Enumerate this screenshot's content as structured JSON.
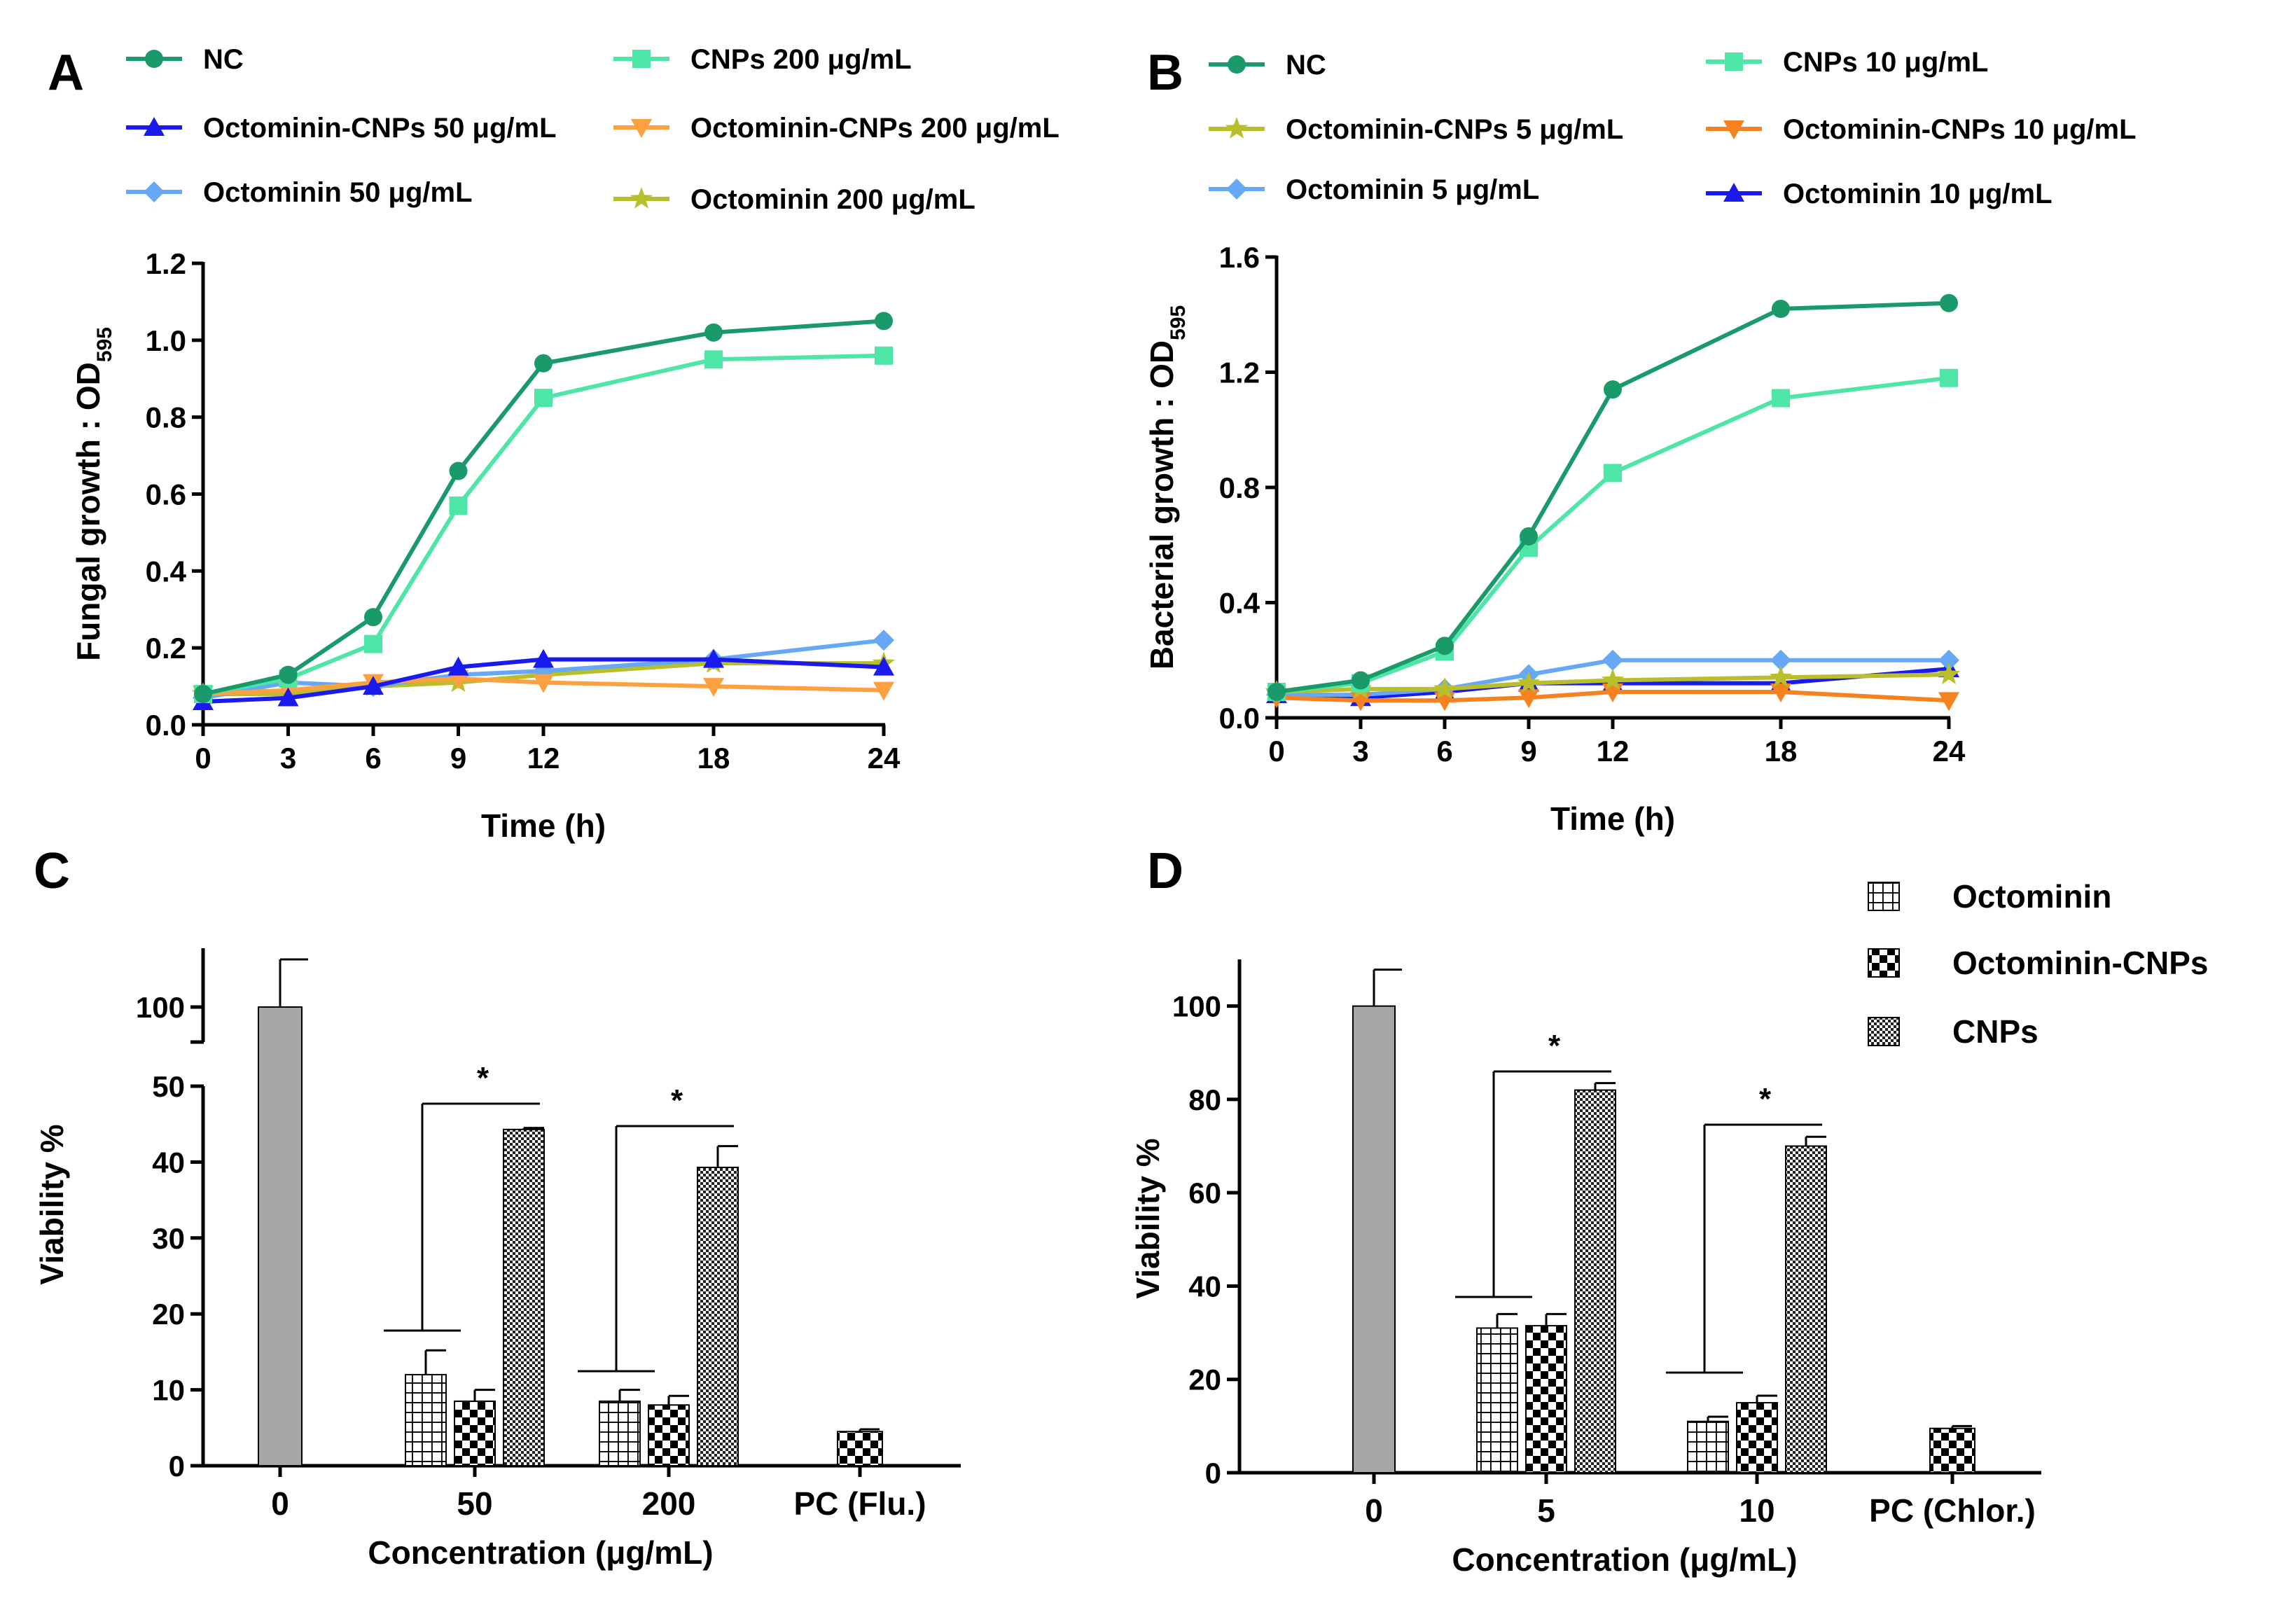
{
  "chart_data": [
    {
      "id": "A",
      "type": "line",
      "panel_label": "A",
      "xlabel": "Time (h)",
      "ylabel_main": "Fungal growth : OD",
      "ylabel_sub": "595",
      "x": [
        0,
        3,
        6,
        9,
        12,
        18,
        24
      ],
      "xticks": [
        "0",
        "3",
        "6",
        "9",
        "12",
        "18",
        "24"
      ],
      "ylim": [
        0,
        1.2
      ],
      "yticks": [
        "0.0",
        "0.2",
        "0.4",
        "0.6",
        "0.8",
        "1.0",
        "1.2"
      ],
      "ytick_values": [
        0,
        0.2,
        0.4,
        0.6,
        0.8,
        1.0,
        1.2
      ],
      "series": [
        {
          "name": "NC",
          "color": "#1a9a6a",
          "marker": "circle",
          "values": [
            0.08,
            0.13,
            0.28,
            0.66,
            0.94,
            1.02,
            1.05
          ]
        },
        {
          "name": "CNPs 200 μg/mL",
          "color": "#4de6a6",
          "marker": "square",
          "values": [
            0.08,
            0.12,
            0.21,
            0.57,
            0.85,
            0.95,
            0.96
          ]
        },
        {
          "name": "Octominin-CNPs 50 μg/mL",
          "color": "#1a1aee",
          "marker": "triangle-up",
          "values": [
            0.06,
            0.07,
            0.1,
            0.15,
            0.17,
            0.17,
            0.15
          ]
        },
        {
          "name": "Octominin-CNPs 200 μg/mL",
          "color": "#ffa040",
          "marker": "triangle-down",
          "values": [
            0.08,
            0.09,
            0.11,
            0.12,
            0.11,
            0.1,
            0.09
          ]
        },
        {
          "name": "Octominin 50 μg/mL",
          "color": "#66a8f5",
          "marker": "diamond",
          "values": [
            0.07,
            0.11,
            0.1,
            0.13,
            0.14,
            0.17,
            0.22
          ]
        },
        {
          "name": "Octominin 200 μg/mL",
          "color": "#b8bf2a",
          "marker": "star",
          "values": [
            0.08,
            0.08,
            0.1,
            0.11,
            0.13,
            0.16,
            0.16
          ]
        }
      ]
    },
    {
      "id": "B",
      "type": "line",
      "panel_label": "B",
      "xlabel": "Time (h)",
      "ylabel_main": "Bacterial growth : OD",
      "ylabel_sub": "595",
      "x": [
        0,
        3,
        6,
        9,
        12,
        18,
        24
      ],
      "xticks": [
        "0",
        "3",
        "6",
        "9",
        "12",
        "18",
        "24"
      ],
      "ylim": [
        0,
        1.6
      ],
      "yticks": [
        "0.0",
        "0.4",
        "0.8",
        "1.2",
        "1.6"
      ],
      "ytick_values": [
        0,
        0.4,
        0.8,
        1.2,
        1.6
      ],
      "series": [
        {
          "name": "NC",
          "color": "#1a9a6a",
          "marker": "circle",
          "values": [
            0.09,
            0.13,
            0.25,
            0.63,
            1.14,
            1.42,
            1.44
          ]
        },
        {
          "name": "CNPs 10 μg/mL",
          "color": "#4de6a6",
          "marker": "square",
          "values": [
            0.09,
            0.12,
            0.23,
            0.59,
            0.85,
            1.11,
            1.18
          ]
        },
        {
          "name": "Octominin-CNPs 5 μg/mL",
          "color": "#b8bf2a",
          "marker": "star",
          "values": [
            0.09,
            0.1,
            0.1,
            0.12,
            0.13,
            0.14,
            0.15
          ]
        },
        {
          "name": "Octominin-CNPs 10 μg/mL",
          "color": "#f5821f",
          "marker": "triangle-down",
          "values": [
            0.07,
            0.06,
            0.06,
            0.07,
            0.09,
            0.09,
            0.06
          ]
        },
        {
          "name": "Octominin 5 μg/mL",
          "color": "#66a8f5",
          "marker": "diamond",
          "values": [
            0.08,
            0.08,
            0.1,
            0.15,
            0.2,
            0.2,
            0.2
          ]
        },
        {
          "name": "Octominin 10 μg/mL",
          "color": "#1a1aee",
          "marker": "triangle-up",
          "values": [
            0.08,
            0.07,
            0.09,
            0.12,
            0.12,
            0.12,
            0.17
          ]
        }
      ]
    },
    {
      "id": "C",
      "type": "bar",
      "panel_label": "C",
      "xlabel": "Concentration (μg/mL)",
      "ylabel": "Viability %",
      "categories": [
        "0",
        "50",
        "200",
        "PC (Flu.)"
      ],
      "ylim_lower": [
        0,
        50
      ],
      "ylim_upper_tick": 100,
      "yticks": [
        "0",
        "10",
        "20",
        "30",
        "40",
        "50",
        "100"
      ],
      "ytick_values": [
        0,
        10,
        20,
        30,
        40,
        50,
        100
      ],
      "control": {
        "category": "0",
        "value": 100,
        "error": 12
      },
      "positive_control": {
        "category": "PC (Flu.)",
        "value": 4.5,
        "error": 0.3
      },
      "series": [
        {
          "name": "Octominin",
          "pattern": "grid",
          "values": [
            null,
            12,
            8.5,
            null
          ],
          "errors": [
            null,
            3.2,
            1.5,
            null
          ]
        },
        {
          "name": "Octominin-CNPs",
          "pattern": "checker",
          "values": [
            null,
            8.5,
            8,
            null
          ],
          "errors": [
            null,
            1.5,
            1.2,
            null
          ]
        },
        {
          "name": "CNPs",
          "pattern": "fine-checker",
          "values": [
            null,
            44.3,
            39.3,
            null
          ],
          "errors": [
            null,
            0.2,
            2.8,
            null
          ]
        }
      ],
      "significance": [
        {
          "category": "50",
          "label": "*"
        },
        {
          "category": "200",
          "label": "*"
        }
      ]
    },
    {
      "id": "D",
      "type": "bar",
      "panel_label": "D",
      "xlabel": "Concentration (μg/mL)",
      "ylabel": "Viability %",
      "categories": [
        "0",
        "5",
        "10",
        "PC (Chlor.)"
      ],
      "ylim": [
        0,
        110
      ],
      "yticks": [
        "0",
        "20",
        "40",
        "60",
        "80",
        "100"
      ],
      "ytick_values": [
        0,
        20,
        40,
        60,
        80,
        100
      ],
      "control": {
        "category": "0",
        "value": 100,
        "error": 8
      },
      "positive_control": {
        "category": "PC (Chlor.)",
        "value": 9.5,
        "error": 0.5
      },
      "series": [
        {
          "name": "Octominin",
          "pattern": "grid",
          "values": [
            null,
            31,
            11,
            null
          ],
          "errors": [
            null,
            3,
            1,
            null
          ]
        },
        {
          "name": "Octominin-CNPs",
          "pattern": "checker",
          "values": [
            null,
            31.5,
            15,
            null
          ],
          "errors": [
            null,
            2.5,
            1.5,
            null
          ]
        },
        {
          "name": "CNPs",
          "pattern": "fine-checker",
          "values": [
            null,
            82,
            70,
            null
          ],
          "errors": [
            null,
            1.5,
            2,
            null
          ]
        }
      ],
      "significance": [
        {
          "category": "5",
          "label": "*"
        },
        {
          "category": "10",
          "label": "*"
        }
      ],
      "legend": [
        "Octominin",
        "Octominin-CNPs",
        "CNPs"
      ]
    }
  ]
}
